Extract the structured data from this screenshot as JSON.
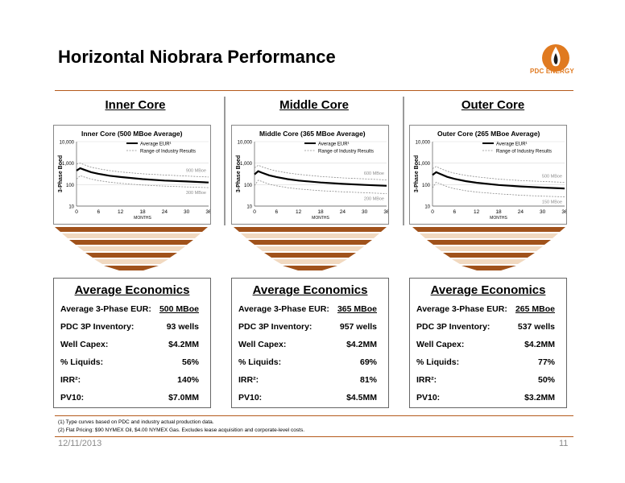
{
  "title": "Horizontal Niobrara Performance",
  "logo": {
    "text": "PDC ENERGY",
    "icon": "pdc-flame-logo-icon",
    "color": "#e07a20"
  },
  "colors": {
    "accent": "#b45a1b",
    "chevron_dark": "#a0521b",
    "chevron_light": "#f1d9c0"
  },
  "columns": [
    {
      "heading": "Inner Core",
      "economics": {
        "heading": "Average Economics",
        "rows": [
          {
            "label": "Average 3-Phase EUR:",
            "value": "500 MBoe"
          },
          {
            "label": "PDC 3P Inventory:",
            "value": "93 wells"
          },
          {
            "label": "Well Capex:",
            "value": "$4.2MM"
          },
          {
            "label": "% Liquids:",
            "value": "56%"
          },
          {
            "label": "IRR²:",
            "value": "140%"
          },
          {
            "label": "PV10:",
            "value": "$7.0MM"
          }
        ]
      }
    },
    {
      "heading": "Middle Core",
      "economics": {
        "heading": "Average Economics",
        "rows": [
          {
            "label": "Average 3-Phase EUR:",
            "value": "365 MBoe"
          },
          {
            "label": "PDC 3P Inventory:",
            "value": "957 wells"
          },
          {
            "label": "Well Capex:",
            "value": "$4.2MM"
          },
          {
            "label": "% Liquids:",
            "value": "69%"
          },
          {
            "label": "IRR²:",
            "value": "81%"
          },
          {
            "label": "PV10:",
            "value": "$4.5MM"
          }
        ]
      }
    },
    {
      "heading": "Outer Core",
      "economics": {
        "heading": "Average Economics",
        "rows": [
          {
            "label": "Average 3-Phase EUR:",
            "value": "265 MBoe"
          },
          {
            "label": "PDC 3P Inventory:",
            "value": "537 wells"
          },
          {
            "label": "Well Capex:",
            "value": "$4.2MM"
          },
          {
            "label": "% Liquids:",
            "value": "77%"
          },
          {
            "label": "IRR²:",
            "value": "50%"
          },
          {
            "label": "PV10:",
            "value": "$3.2MM"
          }
        ]
      }
    }
  ],
  "chart_data": [
    {
      "type": "line",
      "title": "Inner Core  (500 MBoe Average)",
      "xlabel": "MONTHS",
      "ylabel": "3-Phase Boed",
      "log_y": true,
      "xlim": [
        0,
        36
      ],
      "ylim": [
        10,
        10000
      ],
      "x_ticks": [
        "0",
        "6",
        "12",
        "18",
        "24",
        "30",
        "36"
      ],
      "y_ticks": [
        "10",
        "100",
        "1,000",
        "10,000"
      ],
      "legend": [
        "Average EUR¹",
        "Range of Industry Results"
      ],
      "legend_position": "top-right",
      "annotations": [
        "900 MBoe",
        "300 MBoe"
      ],
      "series": [
        {
          "name": "Average EUR¹",
          "style": "solid",
          "x": [
            0,
            1,
            2,
            4,
            6,
            9,
            12,
            18,
            24,
            30,
            36
          ],
          "y": [
            450,
            580,
            500,
            380,
            320,
            260,
            225,
            180,
            155,
            140,
            125
          ]
        },
        {
          "name": "Range of Industry Results",
          "style": "dashed",
          "x": [
            0,
            1,
            2,
            4,
            6,
            9,
            12,
            18,
            24,
            30,
            36
          ],
          "y": [
            900,
            1000,
            850,
            650,
            550,
            450,
            390,
            320,
            280,
            250,
            225
          ]
        },
        {
          "name": "Range of Industry Results",
          "style": "dashed",
          "x": [
            0,
            1,
            2,
            4,
            6,
            9,
            12,
            18,
            24,
            30,
            36
          ],
          "y": [
            180,
            260,
            230,
            180,
            155,
            130,
            115,
            95,
            85,
            78,
            72
          ]
        }
      ]
    },
    {
      "type": "line",
      "title": "Middle Core  (365 MBoe Average)",
      "xlabel": "MONTHS",
      "ylabel": "3-Phase Boed",
      "log_y": true,
      "xlim": [
        0,
        36
      ],
      "ylim": [
        10,
        10000
      ],
      "x_ticks": [
        "0",
        "6",
        "12",
        "18",
        "24",
        "30",
        "36"
      ],
      "y_ticks": [
        "10",
        "100",
        "1,000",
        "10,000"
      ],
      "legend": [
        "Average EUR¹",
        "Range of Industry Results"
      ],
      "legend_position": "top-right",
      "annotations": [
        "600 MBoe",
        "200 MBoe"
      ],
      "series": [
        {
          "name": "Average EUR¹",
          "style": "solid",
          "x": [
            0,
            1,
            2,
            4,
            6,
            9,
            12,
            18,
            24,
            30,
            36
          ],
          "y": [
            300,
            420,
            360,
            270,
            225,
            180,
            155,
            125,
            108,
            97,
            88
          ]
        },
        {
          "name": "Range of Industry Results",
          "style": "dashed",
          "x": [
            0,
            1,
            2,
            4,
            6,
            9,
            12,
            18,
            24,
            30,
            36
          ],
          "y": [
            600,
            800,
            680,
            520,
            430,
            350,
            300,
            240,
            205,
            185,
            165
          ]
        },
        {
          "name": "Range of Industry Results",
          "style": "dashed",
          "x": [
            0,
            1,
            2,
            4,
            6,
            9,
            12,
            18,
            24,
            30,
            36
          ],
          "y": [
            90,
            160,
            140,
            105,
            88,
            72,
            63,
            52,
            46,
            42,
            38
          ]
        }
      ]
    },
    {
      "type": "line",
      "title": "Outer Core  (265 MBoe Average)",
      "xlabel": "MONTHS",
      "ylabel": "3-Phase Boed",
      "log_y": true,
      "xlim": [
        0,
        36
      ],
      "ylim": [
        10,
        10000
      ],
      "x_ticks": [
        "0",
        "6",
        "12",
        "18",
        "24",
        "30",
        "36"
      ],
      "y_ticks": [
        "10",
        "100",
        "1,000",
        "10,000"
      ],
      "legend": [
        "Average EUR¹",
        "Range of Industry Results"
      ],
      "legend_position": "top-right",
      "annotations": [
        "500 MBoe",
        "150 MBoe"
      ],
      "series": [
        {
          "name": "Average EUR¹",
          "style": "solid",
          "x": [
            0,
            1,
            2,
            4,
            6,
            9,
            12,
            18,
            24,
            30,
            36
          ],
          "y": [
            280,
            380,
            320,
            230,
            185,
            145,
            122,
            96,
            82,
            73,
            66
          ]
        },
        {
          "name": "Range of Industry Results",
          "style": "dashed",
          "x": [
            0,
            1,
            2,
            4,
            6,
            9,
            12,
            18,
            24,
            30,
            36
          ],
          "y": [
            550,
            700,
            580,
            420,
            340,
            270,
            230,
            180,
            155,
            140,
            128
          ]
        },
        {
          "name": "Range of Industry Results",
          "style": "dashed",
          "x": [
            0,
            1,
            2,
            4,
            6,
            9,
            12,
            18,
            24,
            30,
            36
          ],
          "y": [
            70,
            130,
            110,
            80,
            65,
            52,
            45,
            37,
            32,
            29,
            27
          ]
        }
      ]
    }
  ],
  "footnotes": [
    "(1) Type curves based on PDC and industry actual production data.",
    "(2) Flat Pricing: $90 NYMEX Oil, $4.00 NYMEX Gas. Excludes lease acquisition and corporate-level costs."
  ],
  "date": "12/11/2013",
  "page_number": "11"
}
